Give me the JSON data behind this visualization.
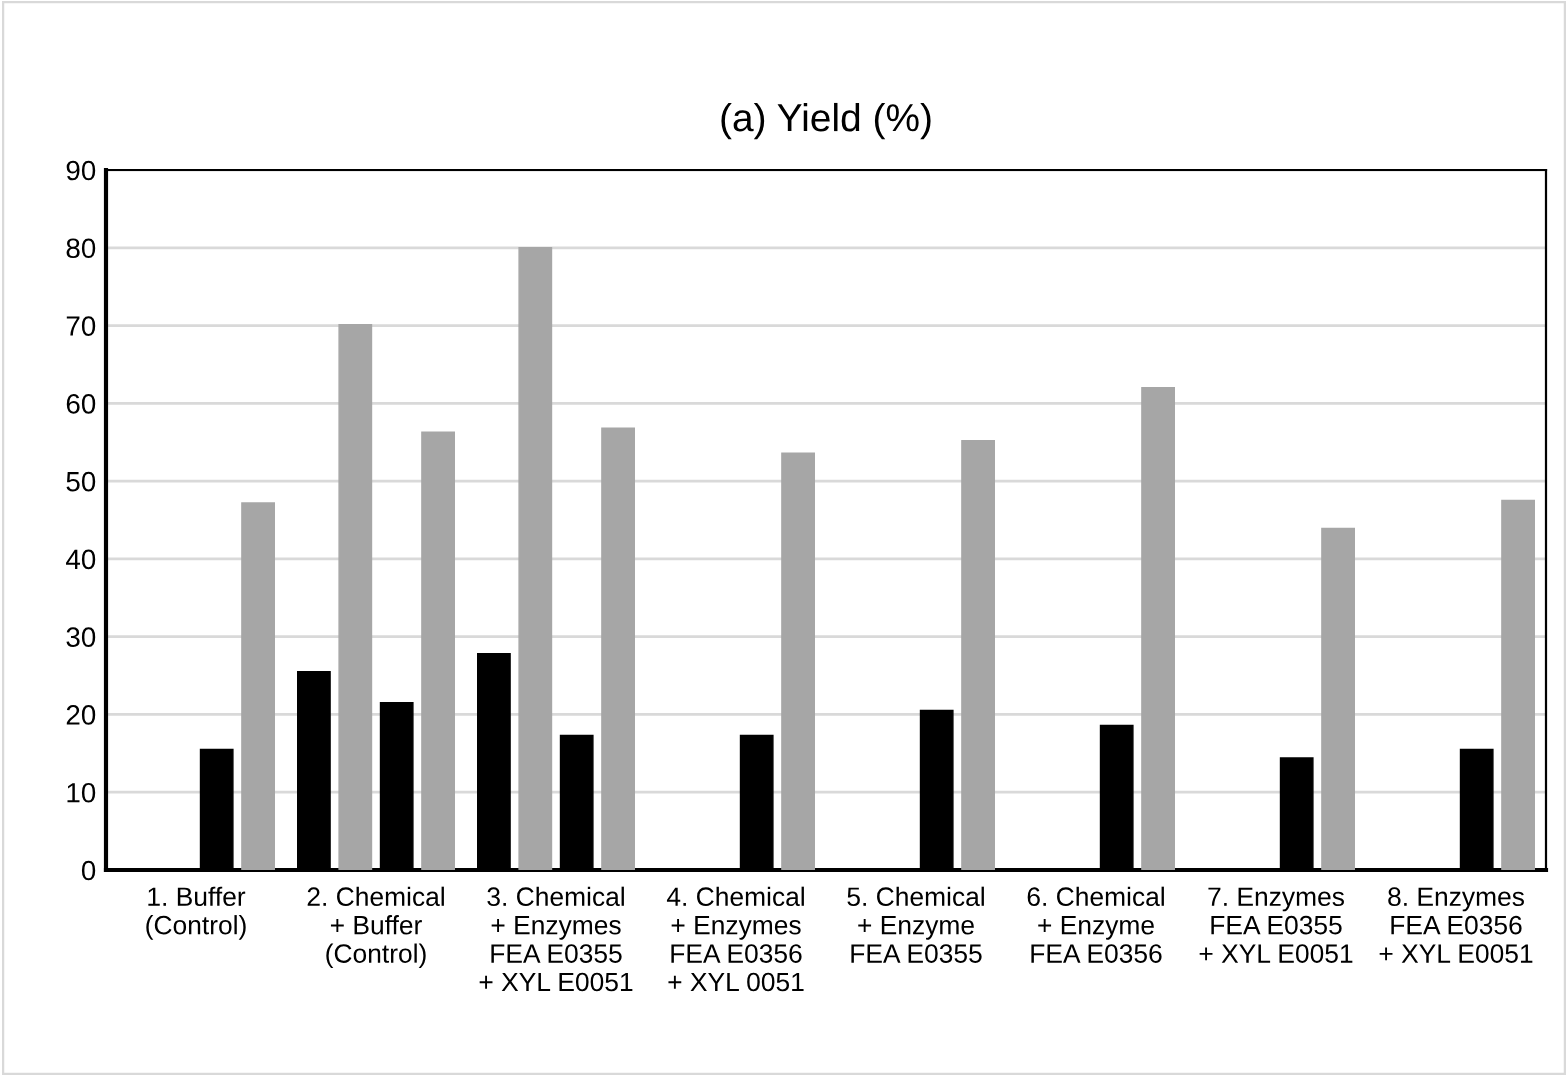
{
  "chart_data": {
    "type": "bar",
    "title": "(a) Yield (%)",
    "categories": [
      "1. Buffer\n(Control)",
      "2. Chemical\n+ Buffer\n(Control)",
      "3. Chemical\n+ Enzymes\nFEA E0355\n+ XYL E0051",
      "4. Chemical\n+ Enzymes\nFEA E0356\n+ XYL 0051",
      "5. Chemical\n+ Enzyme\nFEA E0355",
      "6. Chemical\n+ Enzyme\nFEA E0356",
      "7. Enzymes\nFEA E0355\n+ XYL E0051",
      "8. Enzymes\nFEA E0356\n+ XYL E0051"
    ],
    "series": [
      {
        "color": "#000000",
        "values": [
          null,
          25.5,
          27.8,
          null,
          null,
          null,
          null,
          null
        ]
      },
      {
        "color": "#a6a6a6",
        "values": [
          null,
          70.1,
          80,
          null,
          null,
          null,
          null,
          null
        ]
      },
      {
        "color": "#000000",
        "values": [
          15.5,
          21.5,
          17.3,
          17.3,
          20.5,
          18.6,
          14.4,
          15.5
        ]
      },
      {
        "color": "#a6a6a6",
        "values": [
          47.2,
          56.3,
          56.8,
          53.6,
          55.2,
          62,
          43.9,
          47.5
        ]
      }
    ],
    "ylim": [
      0,
      90
    ],
    "yticks": [
      0,
      10,
      20,
      30,
      40,
      50,
      60,
      70,
      80,
      90
    ],
    "grid": "y",
    "legend": false
  }
}
